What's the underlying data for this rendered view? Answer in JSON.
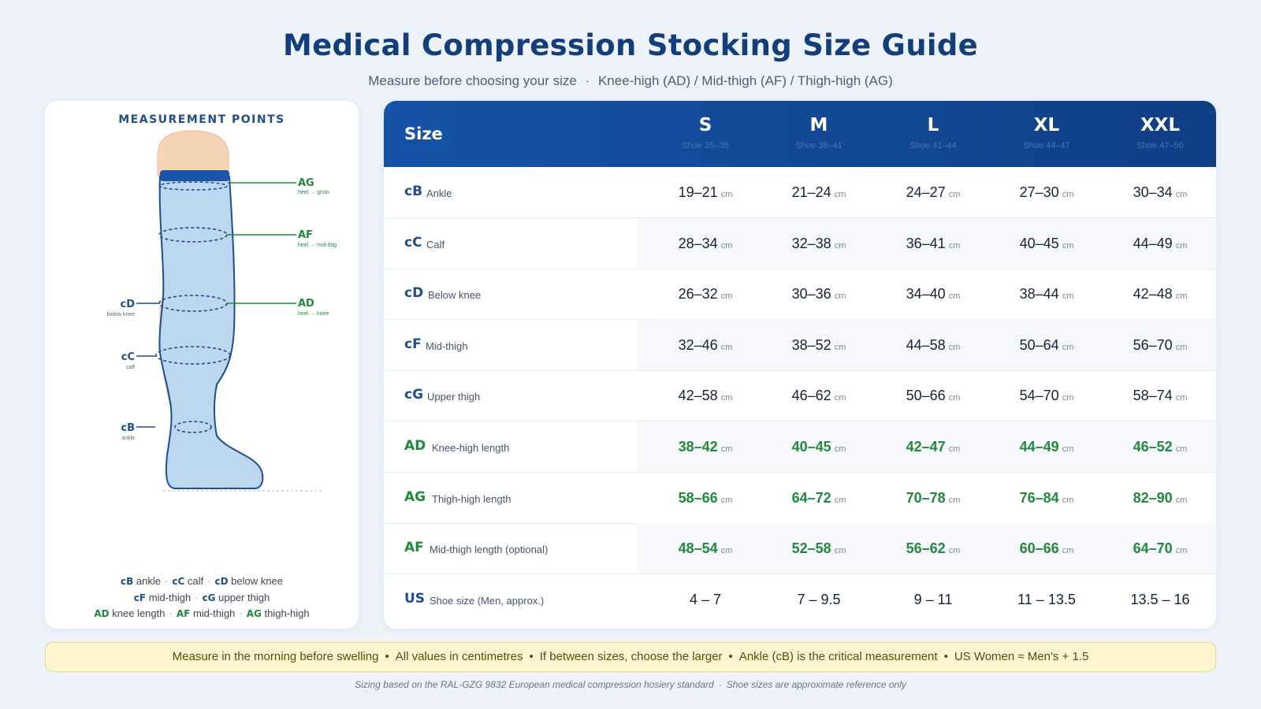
{
  "header": {
    "title": "Medical Compression Stocking Size Guide",
    "subtitle_left": "Measure before choosing your size",
    "subtitle_sep": "·",
    "subtitle_right": "Knee-high (AD) / Mid-thigh (AF) / Thigh-high (AG)"
  },
  "diagram": {
    "title": "MEASUREMENT POINTS",
    "right_labels": [
      {
        "code": "AG",
        "desc": "heel → groin"
      },
      {
        "code": "AF",
        "desc": "heel → mid-thig"
      },
      {
        "code": "AD",
        "desc": "heel → knee"
      }
    ],
    "left_labels": [
      {
        "code": "cD",
        "desc": "below knee"
      },
      {
        "code": "cC",
        "desc": "calf"
      },
      {
        "code": "cB",
        "desc": "ankle"
      }
    ],
    "legend": {
      "line1": [
        {
          "code": "cB",
          "text": "ankle"
        },
        {
          "code": "cC",
          "text": "calf"
        },
        {
          "code": "cD",
          "text": "below knee"
        }
      ],
      "line2": [
        {
          "code": "cF",
          "text": "mid-thigh"
        },
        {
          "code": "cG",
          "text": "upper thigh"
        }
      ],
      "line3": [
        {
          "code": "AD",
          "text": "knee length"
        },
        {
          "code": "AF",
          "text": "mid-thigh"
        },
        {
          "code": "AG",
          "text": "thigh-high"
        }
      ],
      "sep": "·"
    }
  },
  "table": {
    "header_label": "Size",
    "sizes": [
      {
        "size": "S",
        "shoe": "Shoe 35–38"
      },
      {
        "size": "M",
        "shoe": "Shoe 38–41"
      },
      {
        "size": "L",
        "shoe": "Shoe 41–44"
      },
      {
        "size": "XL",
        "shoe": "Shoe 44–47"
      },
      {
        "size": "XXL",
        "shoe": "Shoe 47–50"
      }
    ],
    "rows": [
      {
        "code": "cB",
        "name": "Ankle",
        "unit": "cm",
        "values": [
          "19–21",
          "21–24",
          "24–27",
          "27–30",
          "30–34"
        ]
      },
      {
        "code": "cC",
        "name": "Calf",
        "unit": "cm",
        "values": [
          "28–34",
          "32–38",
          "36–41",
          "40–45",
          "44–49"
        ]
      },
      {
        "code": "cD",
        "name": "Below knee",
        "unit": "cm",
        "values": [
          "26–32",
          "30–36",
          "34–40",
          "38–44",
          "42–48"
        ]
      },
      {
        "code": "cF",
        "name": "Mid-thigh",
        "unit": "cm",
        "values": [
          "32–46",
          "38–52",
          "44–58",
          "50–64",
          "56–70"
        ]
      },
      {
        "code": "cG",
        "name": "Upper thigh",
        "unit": "cm",
        "values": [
          "42–58",
          "46–62",
          "50–66",
          "54–70",
          "58–74"
        ]
      },
      {
        "code": "AD",
        "name": "Knee-high length",
        "unit": "cm",
        "values": [
          "38–42",
          "40–45",
          "42–47",
          "44–49",
          "46–52"
        ]
      },
      {
        "code": "AG",
        "name": "Thigh-high length",
        "unit": "cm",
        "values": [
          "58–66",
          "64–72",
          "70–78",
          "76–84",
          "82–90"
        ]
      },
      {
        "code": "AF",
        "name": "Mid-thigh length (optional)",
        "unit": "cm",
        "values": [
          "48–54",
          "52–58",
          "56–62",
          "60–66",
          "64–70"
        ]
      },
      {
        "code": "US",
        "name": "Shoe size (Men, approx.)",
        "unit": "",
        "values": [
          "4 – 7",
          "7 – 9.5",
          "9 – 11",
          "11 – 13.5",
          "13.5 – 16"
        ]
      }
    ]
  },
  "notes": {
    "items": [
      "Measure in the morning before swelling",
      "All values in centimetres",
      "If between sizes, choose the larger",
      "Ankle (cB) is the critical measurement",
      "US Women ≈ Men's + 1.5"
    ],
    "sep": "•"
  },
  "footer": {
    "left": "Sizing based on the RAL-GZG 9832 European medical compression hosiery standard",
    "sep": "·",
    "right": "Shoe sizes are approximate reference only"
  },
  "colors": {
    "title": "#123f7c",
    "header_bg": "#1553a6",
    "blue_code": "#1d4f91",
    "green_code": "#1f8a3c",
    "stocking_fill": "#bcd7ef",
    "skin": "#f6d4b6",
    "note_bg": "#fdf6cf"
  }
}
